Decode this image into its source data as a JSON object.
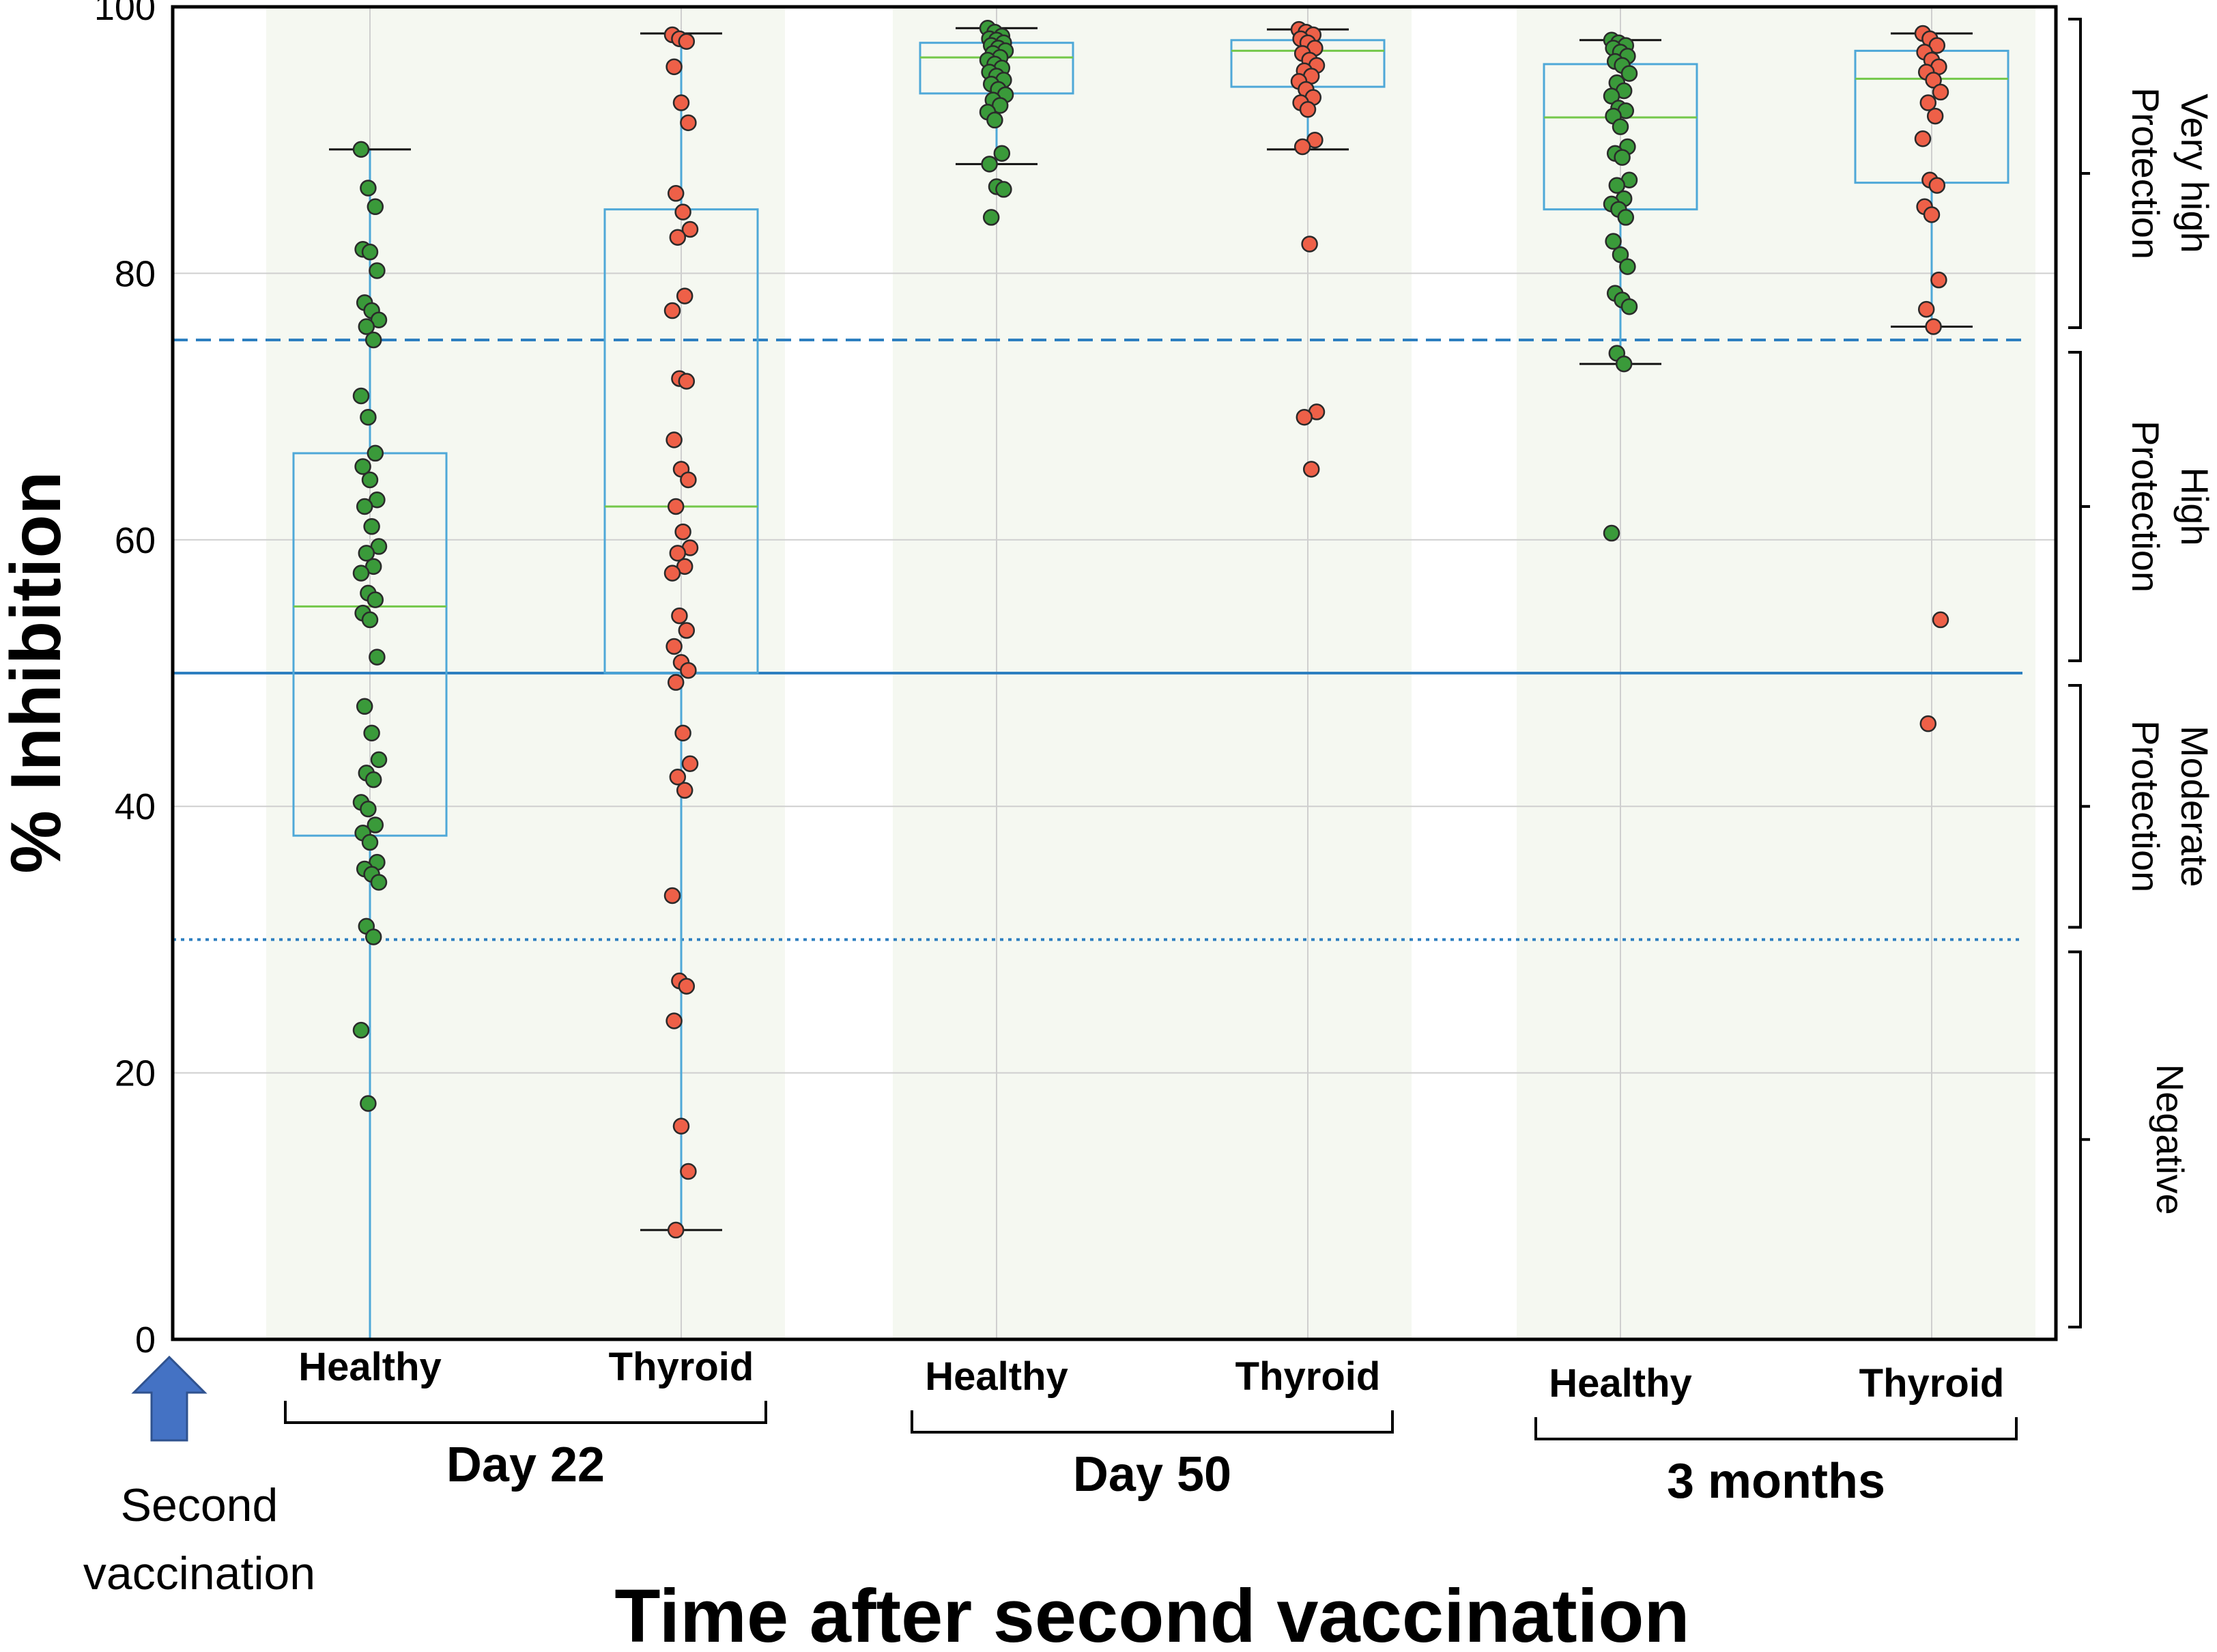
{
  "chart_data": {
    "type": "box-strip",
    "title": "",
    "xlabel": "Time after second vaccination",
    "ylabel": "% Inhibition",
    "ylim": [
      0,
      100
    ],
    "yticks": [
      0,
      20,
      40,
      60,
      80,
      100
    ],
    "grid": true,
    "colors": {
      "healthy": "#3a9a3a",
      "thyroid": "#ee6048",
      "box": "#4ea8d8",
      "median": "#74c84a",
      "band": "#f5f8f1",
      "line": "#2d7fc0",
      "arrow": "#4472c4"
    },
    "thresholds": [
      {
        "value": 75,
        "style": "dashed"
      },
      {
        "value": 50,
        "style": "solid"
      },
      {
        "value": 30,
        "style": "dotted"
      }
    ],
    "zones": [
      {
        "label": "Very high Protection",
        "lines": [
          "Very high",
          "Protection"
        ],
        "from": 75,
        "to": 100
      },
      {
        "label": "High Protection",
        "lines": [
          "High",
          "Protection"
        ],
        "from": 50,
        "to": 75
      },
      {
        "label": "Moderate Protection",
        "lines": [
          "Moderate",
          "Protection"
        ],
        "from": 30,
        "to": 50
      },
      {
        "label": "Negative",
        "lines": [
          "Negative"
        ],
        "from": 0,
        "to": 30
      }
    ],
    "second_vaccination_label": [
      "Second",
      "vaccination"
    ],
    "periods": [
      {
        "label": "Day 22",
        "groups": [
          {
            "label": "Healthy",
            "color_key": "healthy",
            "box": {
              "whislo": 0,
              "q1": 37.8,
              "med": 55,
              "q3": 66.5,
              "whishi": 89.3
            },
            "points": [
              89.3,
              86.4,
              85,
              81.8,
              81.6,
              80.2,
              77.8,
              77.2,
              76.5,
              76,
              75,
              70.8,
              69.2,
              66.5,
              65.5,
              64.5,
              63,
              62.5,
              61,
              59.5,
              59,
              58,
              57.5,
              56,
              55.5,
              54.5,
              54,
              51.2,
              47.5,
              45.5,
              43.5,
              42.5,
              42,
              40.3,
              39.8,
              38.6,
              38,
              37.3,
              35.8,
              35.3,
              34.9,
              34.3,
              31,
              30.2,
              23.2,
              17.7
            ]
          },
          {
            "label": "Thyroid",
            "color_key": "thyroid",
            "box": {
              "whislo": 8.2,
              "q1": 50,
              "med": 62.5,
              "q3": 84.8,
              "whishi": 98
            },
            "points": [
              97.9,
              97.6,
              97.4,
              95.5,
              92.8,
              91.3,
              86,
              84.6,
              83.3,
              82.7,
              78.3,
              77.2,
              72.1,
              71.9,
              67.5,
              65.3,
              64.5,
              62.5,
              60.6,
              59.4,
              59,
              58,
              57.5,
              54.3,
              53.2,
              52,
              50.8,
              50.2,
              49.3,
              45.5,
              43.2,
              42.2,
              41.2,
              33.3,
              26.9,
              26.5,
              23.9,
              16,
              12.6,
              8.2
            ]
          }
        ]
      },
      {
        "label": "Day 50",
        "groups": [
          {
            "label": "Healthy",
            "color_key": "healthy",
            "box": {
              "whislo": 88.2,
              "q1": 93.5,
              "med": 96.2,
              "q3": 97.3,
              "whishi": 98.4
            },
            "points": [
              98.4,
              98.1,
              97.8,
              97.6,
              97.5,
              97.3,
              97.1,
              96.9,
              96.7,
              96.5,
              96.2,
              96,
              95.7,
              95.4,
              95.1,
              94.8,
              94.5,
              94.2,
              93.8,
              93.4,
              93,
              92.6,
              92.1,
              91.5,
              89,
              88.2,
              86.5,
              86.3,
              84.2
            ]
          },
          {
            "label": "Thyroid",
            "color_key": "thyroid",
            "box": {
              "whislo": 89.3,
              "q1": 94,
              "med": 96.7,
              "q3": 97.5,
              "whishi": 98.3
            },
            "points": [
              98.3,
              98.1,
              97.9,
              97.6,
              97.3,
              96.9,
              96.5,
              96,
              95.6,
              95.2,
              94.8,
              94.4,
              93.8,
              93.2,
              92.8,
              92.3,
              90,
              89.5,
              82.2,
              69.6,
              69.2,
              65.3
            ]
          }
        ]
      },
      {
        "label": "3 months",
        "groups": [
          {
            "label": "Healthy",
            "color_key": "healthy",
            "box": {
              "whislo": 73.2,
              "q1": 84.8,
              "med": 91.7,
              "q3": 95.7,
              "whishi": 97.5
            },
            "points": [
              97.5,
              97.3,
              97.1,
              96.9,
              96.6,
              96.3,
              95.9,
              95.6,
              95,
              94.3,
              93.7,
              93.3,
              92.4,
              92.2,
              91.8,
              91,
              89.5,
              89,
              88.7,
              87,
              86.6,
              85.6,
              85.2,
              84.8,
              84.2,
              82.4,
              81.4,
              80.5,
              78.5,
              78,
              77.5,
              74,
              73.2,
              60.5
            ]
          },
          {
            "label": "Thyroid",
            "color_key": "thyroid",
            "box": {
              "whislo": 76,
              "q1": 86.8,
              "med": 94.6,
              "q3": 96.7,
              "whishi": 98
            },
            "points": [
              98,
              97.6,
              97.1,
              96.6,
              96,
              95.5,
              95.1,
              94.5,
              93.6,
              92.8,
              91.8,
              90.1,
              87,
              86.6,
              85,
              84.4,
              79.5,
              77.3,
              76,
              54,
              46.2
            ]
          }
        ]
      }
    ]
  }
}
